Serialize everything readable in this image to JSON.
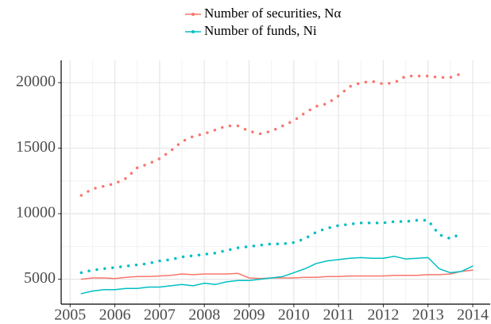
{
  "chart_data": {
    "type": "line",
    "x": [
      2005.25,
      2005.5,
      2005.75,
      2006,
      2006.25,
      2006.5,
      2006.75,
      2007,
      2007.25,
      2007.5,
      2007.75,
      2008,
      2008.25,
      2008.5,
      2008.75,
      2009,
      2009.25,
      2009.5,
      2009.75,
      2010,
      2010.25,
      2010.5,
      2010.75,
      2011,
      2011.25,
      2011.5,
      2011.75,
      2012,
      2012.25,
      2012.5,
      2012.75,
      2013,
      2013.25,
      2013.5,
      2013.75,
      2014
    ],
    "series": [
      {
        "name": "Number of securities, Nα",
        "color": "#F8766D",
        "lines": [
          {
            "style": "dotted",
            "values": [
              11400,
              11900,
              12100,
              12300,
              12700,
              13500,
              13800,
              14200,
              14800,
              15500,
              15900,
              16100,
              16400,
              16700,
              16700,
              16300,
              16100,
              16300,
              16700,
              17100,
              17700,
              18200,
              18400,
              19000,
              19700,
              20000,
              20100,
              19900,
              20000,
              20500,
              20500,
              20500,
              20400,
              20400,
              20700,
              null
            ]
          },
          {
            "style": "solid",
            "values": [
              5000,
              5100,
              5100,
              5050,
              5150,
              5200,
              5200,
              5250,
              5300,
              5400,
              5350,
              5400,
              5400,
              5400,
              5450,
              5100,
              5050,
              5100,
              5100,
              5100,
              5150,
              5150,
              5200,
              5200,
              5250,
              5250,
              5250,
              5250,
              5300,
              5300,
              5300,
              5350,
              5350,
              5400,
              5600,
              5700
            ]
          }
        ]
      },
      {
        "name": "Number of funds, Ni",
        "color": "#00BFC4",
        "lines": [
          {
            "style": "dotted",
            "values": [
              5500,
              5700,
              5800,
              5900,
              6000,
              6100,
              6200,
              6400,
              6500,
              6700,
              6800,
              6900,
              7000,
              7200,
              7400,
              7500,
              7600,
              7700,
              7700,
              7800,
              8100,
              8600,
              8900,
              9100,
              9200,
              9300,
              9300,
              9300,
              9400,
              9400,
              9500,
              9500,
              8400,
              8100,
              8500,
              null
            ]
          },
          {
            "style": "solid",
            "values": [
              3900,
              4100,
              4200,
              4200,
              4300,
              4300,
              4400,
              4400,
              4500,
              4600,
              4500,
              4700,
              4600,
              4800,
              4900,
              4900,
              5000,
              5100,
              5200,
              5500,
              5800,
              6200,
              6400,
              6500,
              6600,
              6650,
              6600,
              6600,
              6750,
              6550,
              6600,
              6650,
              5800,
              5500,
              5600,
              6000
            ]
          }
        ]
      }
    ],
    "xlim": [
      2004.8,
      2014.39
    ],
    "xticks": [
      2005,
      2006,
      2007,
      2008,
      2009,
      2010,
      2011,
      2012,
      2013,
      2014
    ],
    "ylim": [
      3100,
      21700
    ],
    "yticks": [
      5000,
      10000,
      15000,
      20000
    ],
    "grid": true
  }
}
